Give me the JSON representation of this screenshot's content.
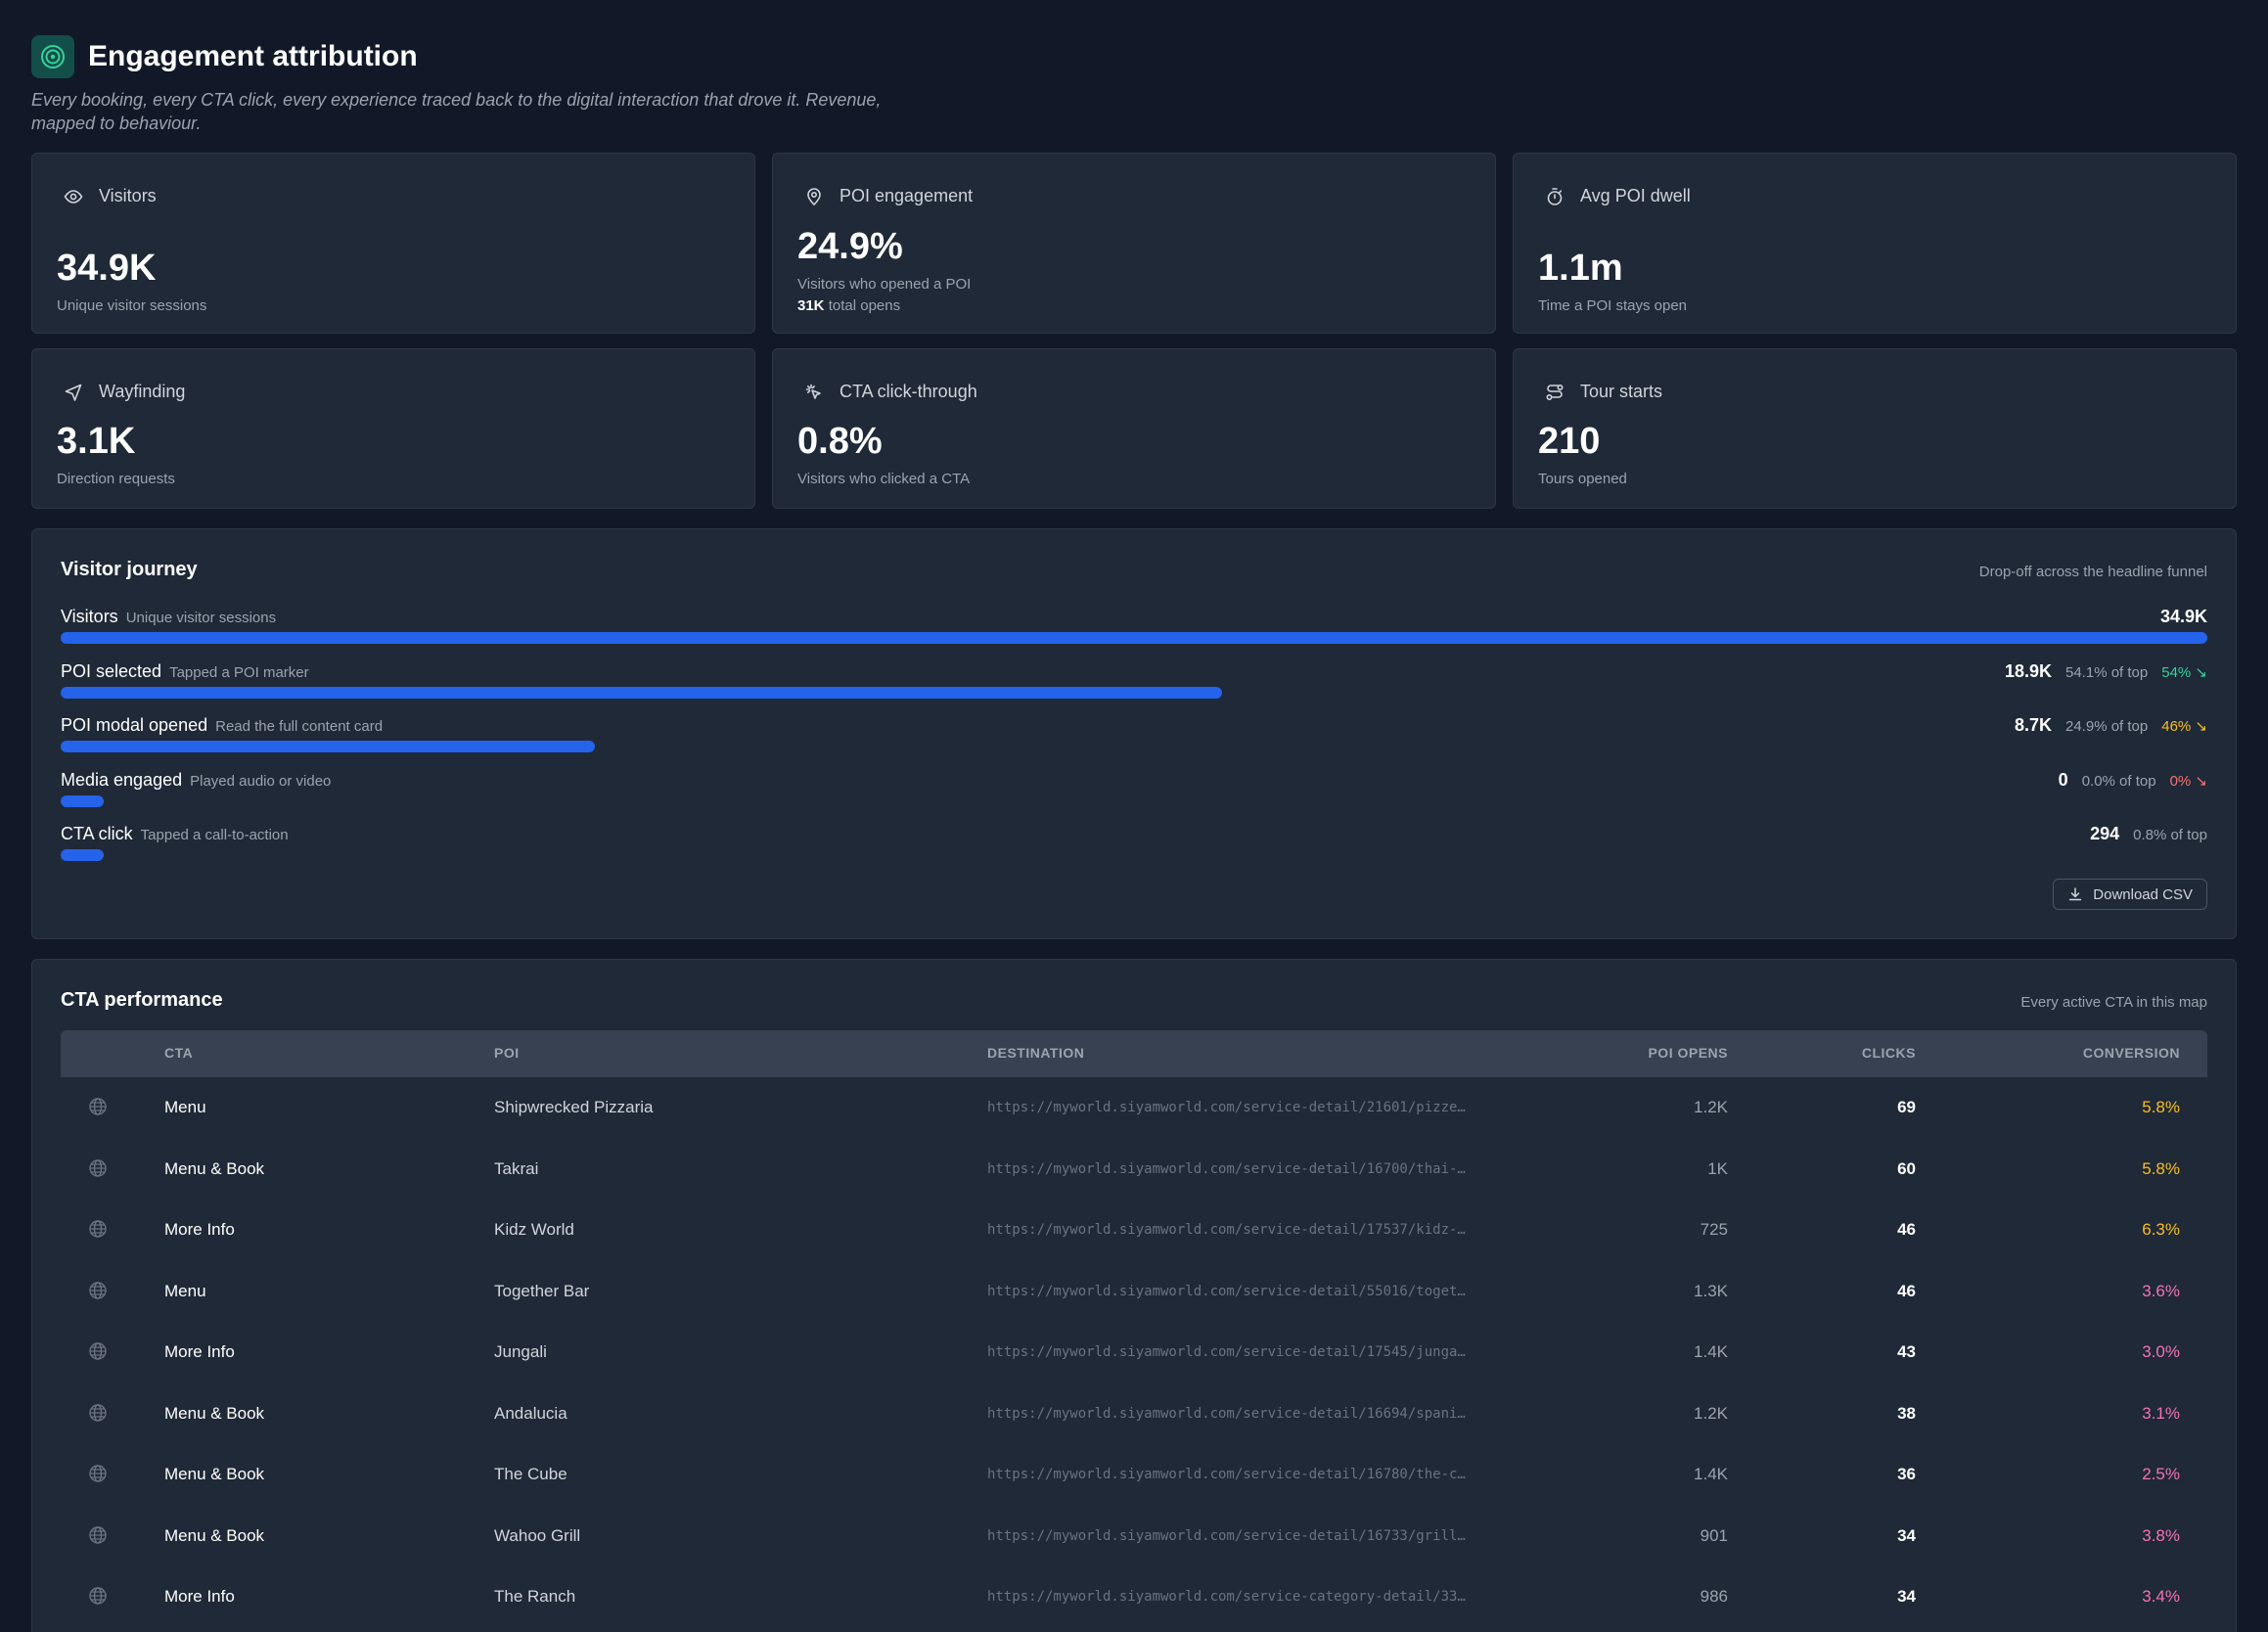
{
  "header": {
    "title": "Engagement attribution",
    "subtitle": "Every booking, every CTA click, every experience traced back to the digital interaction that drove it. Revenue, mapped to behaviour."
  },
  "kpis": [
    {
      "icon": "eye-icon",
      "label": "Visitors",
      "value": "34.9K",
      "sub": "Unique visitor sessions"
    },
    {
      "icon": "map-pin-icon",
      "label": "POI engagement",
      "value": "24.9%",
      "sub": "Visitors who opened a POI",
      "sub2_strong": "31K",
      "sub2": "total opens"
    },
    {
      "icon": "stopwatch-icon",
      "label": "Avg POI dwell",
      "value": "1.1m",
      "sub": "Time a POI stays open"
    },
    {
      "icon": "navigation-arrow-icon",
      "label": "Wayfinding",
      "value": "3.1K",
      "sub": "Direction requests"
    },
    {
      "icon": "pointer-click-icon",
      "label": "CTA click-through",
      "value": "0.8%",
      "sub": "Visitors who clicked a CTA"
    },
    {
      "icon": "route-icon",
      "label": "Tour starts",
      "value": "210",
      "sub": "Tours opened"
    }
  ],
  "journey": {
    "title": "Visitor journey",
    "note": "Drop-off across the headline funnel",
    "download_label": "Download CSV",
    "steps": [
      {
        "label": "Visitors",
        "desc": "Unique visitor sessions",
        "value": "34.9K",
        "pct": "",
        "drop": "",
        "fill": 1.0
      },
      {
        "label": "POI selected",
        "desc": "Tapped a POI marker",
        "value": "18.9K",
        "pct": "54.1% of top",
        "drop": "54% ↘",
        "drop_color": "#34d399",
        "fill": 0.541
      },
      {
        "label": "POI modal opened",
        "desc": "Read the full content card",
        "value": "8.7K",
        "pct": "24.9% of top",
        "drop": "46% ↘",
        "drop_color": "#fbbf24",
        "fill": 0.249
      },
      {
        "label": "Media engaged",
        "desc": "Played audio or video",
        "value": "0",
        "pct": "0.0% of top",
        "drop": "0% ↘",
        "drop_color": "#f87171",
        "fill": 0.0
      },
      {
        "label": "CTA click",
        "desc": "Tapped a call-to-action",
        "value": "294",
        "pct": "0.8% of top",
        "drop": "",
        "fill": 0.008
      }
    ]
  },
  "cta_table": {
    "title": "CTA performance",
    "note": "Every active CTA in this map",
    "columns": {
      "cta": "CTA",
      "poi": "POI",
      "destination": "DESTINATION",
      "opens": "POI OPENS",
      "clicks": "CLICKS",
      "conversion": "CONVERSION"
    },
    "rows": [
      {
        "cta": "Menu",
        "poi": "Shipwrecked Pizzaria",
        "dest": "https://myworld.siyamworld.com/service-detail/21601/pizze…",
        "opens": "1.2K",
        "clicks": "69",
        "conv": "5.8%",
        "conv_color": "#fbbf24"
      },
      {
        "cta": "Menu & Book",
        "poi": "Takrai",
        "dest": "https://myworld.siyamworld.com/service-detail/16700/thai-…",
        "opens": "1K",
        "clicks": "60",
        "conv": "5.8%",
        "conv_color": "#fbbf24"
      },
      {
        "cta": "More Info",
        "poi": "Kidz World",
        "dest": "https://myworld.siyamworld.com/service-detail/17537/kidz-…",
        "opens": "725",
        "clicks": "46",
        "conv": "6.3%",
        "conv_color": "#fbbf24"
      },
      {
        "cta": "Menu",
        "poi": "Together Bar",
        "dest": "https://myworld.siyamworld.com/service-detail/55016/toget…",
        "opens": "1.3K",
        "clicks": "46",
        "conv": "3.6%",
        "conv_color": "#f472b6"
      },
      {
        "cta": "More Info",
        "poi": "Jungali",
        "dest": "https://myworld.siyamworld.com/service-detail/17545/junga…",
        "opens": "1.4K",
        "clicks": "43",
        "conv": "3.0%",
        "conv_color": "#f472b6"
      },
      {
        "cta": "Menu & Book",
        "poi": "Andalucia",
        "dest": "https://myworld.siyamworld.com/service-detail/16694/spani…",
        "opens": "1.2K",
        "clicks": "38",
        "conv": "3.1%",
        "conv_color": "#f472b6"
      },
      {
        "cta": "Menu & Book",
        "poi": "The Cube",
        "dest": "https://myworld.siyamworld.com/service-detail/16780/the-c…",
        "opens": "1.4K",
        "clicks": "36",
        "conv": "2.5%",
        "conv_color": "#f472b6"
      },
      {
        "cta": "Menu & Book",
        "poi": "Wahoo Grill",
        "dest": "https://myworld.siyamworld.com/service-detail/16733/grill…",
        "opens": "901",
        "clicks": "34",
        "conv": "3.8%",
        "conv_color": "#f472b6"
      },
      {
        "cta": "More Info",
        "poi": "The Ranch",
        "dest": "https://myworld.siyamworld.com/service-category-detail/33…",
        "opens": "986",
        "clicks": "34",
        "conv": "3.4%",
        "conv_color": "#f472b6"
      }
    ]
  },
  "colors": {
    "accent": "#2563eb",
    "background": "#111827",
    "card": "#1f2937",
    "logo_ring": "#34d399"
  }
}
